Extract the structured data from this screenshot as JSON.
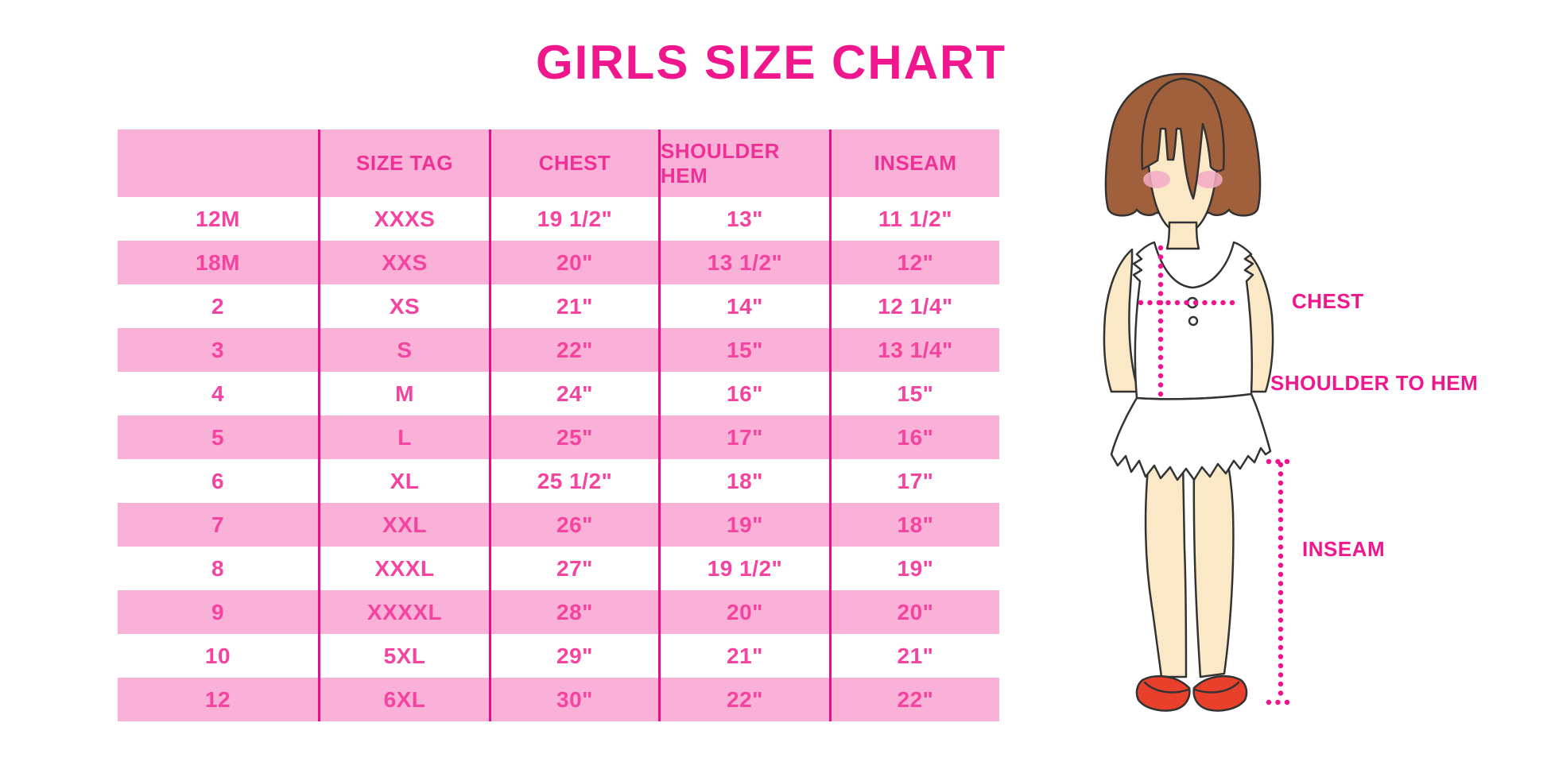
{
  "page": {
    "title": "GIRLS SIZE CHART"
  },
  "colors": {
    "title_magenta": "#F0168D",
    "table_cell_text": "#F4449F",
    "table_header_text": "#EF3097",
    "pink_row_background": "#FAB1D7",
    "column_separator": "#E70C8C",
    "dotted_measure_line": "#F2128E",
    "hair_brown": "#A0603C",
    "skin": "#FAE8C6",
    "blush": "#F3ACC6",
    "shoe_red": "#E8402A",
    "outline": "#333333"
  },
  "chart_data": {
    "type": "table",
    "title": "GIRLS SIZE CHART",
    "columns": [
      "",
      "SIZE TAG",
      "CHEST",
      "SHOULDER HEM",
      "INSEAM"
    ],
    "rows": [
      [
        "12M",
        "XXXS",
        "19 1/2\"",
        "13\"",
        "11 1/2\""
      ],
      [
        "18M",
        "XXS",
        "20\"",
        "13 1/2\"",
        "12\""
      ],
      [
        "2",
        "XS",
        "21\"",
        "14\"",
        "12 1/4\""
      ],
      [
        "3",
        "S",
        "22\"",
        "15\"",
        "13 1/4\""
      ],
      [
        "4",
        "M",
        "24\"",
        "16\"",
        "15\""
      ],
      [
        "5",
        "L",
        "25\"",
        "17\"",
        "16\""
      ],
      [
        "6",
        "XL",
        "25 1/2\"",
        "18\"",
        "17\""
      ],
      [
        "7",
        "XXL",
        "26\"",
        "19\"",
        "18\""
      ],
      [
        "8",
        "XXXL",
        "27\"",
        "19 1/2\"",
        "19\""
      ],
      [
        "9",
        "XXXXL",
        "28\"",
        "20\"",
        "20\""
      ],
      [
        "10",
        "5XL",
        "29\"",
        "21\"",
        "21\""
      ],
      [
        "12",
        "6XL",
        "30\"",
        "22\"",
        "22\""
      ]
    ],
    "layout": {
      "striping": "header pink, data rows alternate white/pink",
      "grid": "magenta vertical separators only"
    }
  },
  "figure": {
    "description": "cartoon girl with brown bob, white ruffle top and skirt, red shoes",
    "labels": {
      "chest": "CHEST",
      "shoulder_to_hem": "SHOULDER TO HEM",
      "inseam": "INSEAM"
    }
  }
}
